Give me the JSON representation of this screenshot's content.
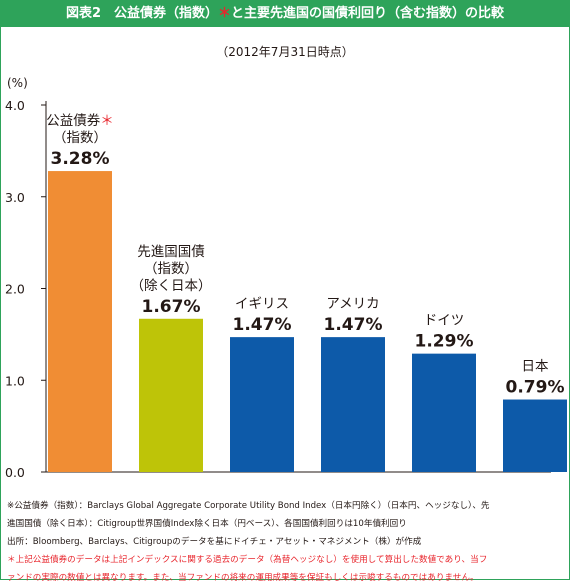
{
  "title": {
    "main": "図表2　公益債券（指数）",
    "star": "＊",
    "rest": "と主要先進国の国債利回り（含む指数）の比較"
  },
  "as_of": "（2012年7月31日時点）",
  "colors": {
    "title_bg": "#2ea35a",
    "orange": "#f08d34",
    "lime": "#bec408",
    "blue": "#0d5aa9",
    "red": "#e8262d",
    "axis": "#231815"
  },
  "chart_data": {
    "type": "bar",
    "unit_label": "(%)",
    "ylim": [
      0,
      4
    ],
    "yticks": [
      "0.0",
      "1.0",
      "2.0",
      "3.0",
      "4.0"
    ],
    "grid": false,
    "values": [
      3.28,
      1.67,
      1.47,
      1.47,
      1.29,
      0.79
    ],
    "bars": [
      {
        "label_lines": [
          "公益債券",
          "（指数）"
        ],
        "star": "＊",
        "value_label": "3.28%",
        "color": "#f08d34"
      },
      {
        "label_lines": [
          "先進国国債",
          "（指数）",
          "（除く日本）"
        ],
        "star": "",
        "value_label": "1.67%",
        "color": "#bec408"
      },
      {
        "label_lines": [
          "イギリス"
        ],
        "star": "",
        "value_label": "1.47%",
        "color": "#0d5aa9"
      },
      {
        "label_lines": [
          "アメリカ"
        ],
        "star": "",
        "value_label": "1.47%",
        "color": "#0d5aa9"
      },
      {
        "label_lines": [
          "ドイツ"
        ],
        "star": "",
        "value_label": "1.29%",
        "color": "#0d5aa9"
      },
      {
        "label_lines": [
          "日本"
        ],
        "star": "",
        "value_label": "0.79%",
        "color": "#0d5aa9"
      }
    ]
  },
  "notes": {
    "line1": "※公益債券（指数）：Barclays Global Aggregate Corporate Utility Bond Index（日本円除く）（日本円、ヘッジなし）、先",
    "line2": "進国国債（除く日本）：Citigroup世界国債Index除く日本（円ベース）、各国国債利回りは10年債利回り",
    "line3": "出所：Bloomberg、Barclays、Citigroupのデータを基にドイチェ・アセット・マネジメント（株）が作成",
    "line4": "＊上記公益債券のデータは上記インデックスに関する過去のデータ（為替ヘッジなし）を使用して算出した数値であり、当フ",
    "line5": "ァンドの実際の数値とは異なります。また、当ファンドの将来の運用成果等を保証もしくは示唆するものではありません。"
  }
}
